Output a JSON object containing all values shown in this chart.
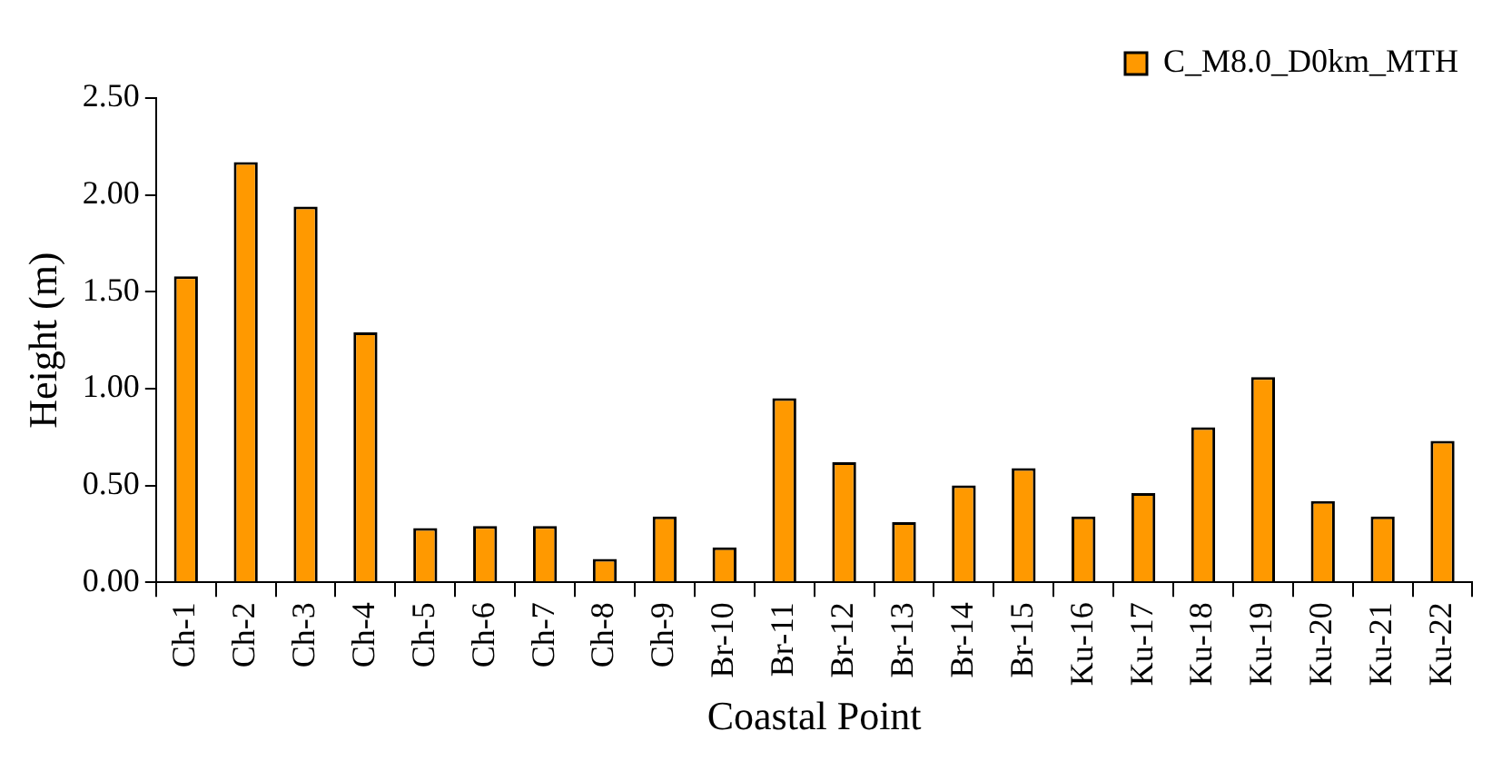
{
  "chart_data": {
    "type": "bar",
    "xlabel": "Coastal Point",
    "ylabel": "Height (m)",
    "categories": [
      "Ch-1",
      "Ch-2",
      "Ch-3",
      "Ch-4",
      "Ch-5",
      "Ch-6",
      "Ch-7",
      "Ch-8",
      "Ch-9",
      "Br-10",
      "Br-11",
      "Br-12",
      "Br-13",
      "Br-14",
      "Br-15",
      "Ku-16",
      "Ku-17",
      "Ku-18",
      "Ku-19",
      "Ku-20",
      "Ku-21",
      "Ku-22"
    ],
    "series": [
      {
        "name": "C_M8.0_D0km_MTH",
        "color": "#ff9900",
        "values": [
          1.58,
          2.17,
          1.94,
          1.29,
          0.28,
          0.29,
          0.29,
          0.12,
          0.34,
          0.18,
          0.95,
          0.62,
          0.31,
          0.5,
          0.59,
          0.34,
          0.46,
          0.8,
          1.06,
          0.42,
          0.34,
          0.73
        ]
      }
    ],
    "ylim": [
      0,
      2.5
    ],
    "yticks": [
      {
        "value": 0,
        "label": "0.00"
      },
      {
        "value": 0.5,
        "label": "0.50"
      },
      {
        "value": 1,
        "label": "1.00"
      },
      {
        "value": 1.5,
        "label": "1.50"
      },
      {
        "value": 2,
        "label": "2.00"
      },
      {
        "value": 2.5,
        "label": "2.50"
      }
    ],
    "grid": false,
    "legend": "top right"
  }
}
